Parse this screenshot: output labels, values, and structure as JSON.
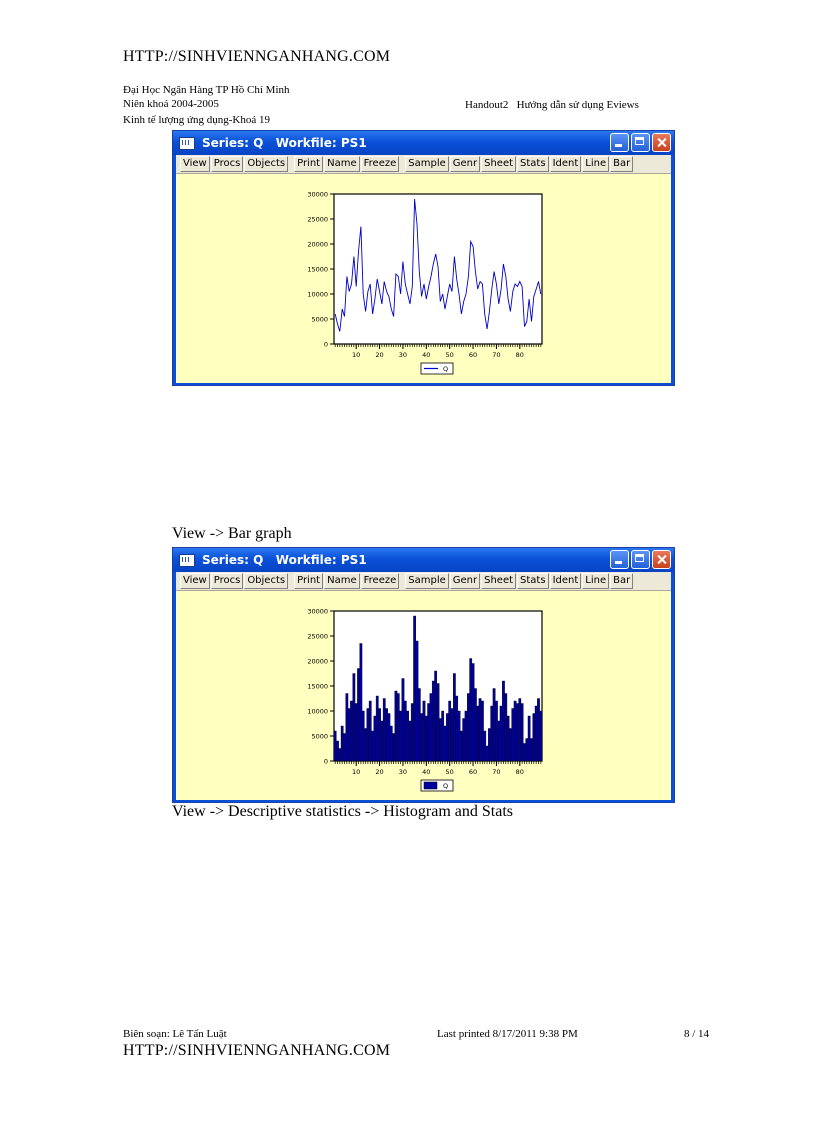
{
  "header": {
    "url": "HTTP://SINHVIENNGANHANG.COM",
    "line1": "Đại Học Ngân Hàng TP Hồ Chí Minh",
    "line2": "Niên khoá 2004-2005",
    "line3": "Kinh tế lượng ứng dụng-Khoá 19",
    "handout": "Handout2   Hướng dẫn sử dụng Eviews"
  },
  "window": {
    "title": "Series: Q   Workfile: PS1",
    "toolbar": [
      "View",
      "Procs",
      "Objects",
      "Print",
      "Name",
      "Freeze",
      "Sample",
      "Genr",
      "Sheet",
      "Stats",
      "Ident",
      "Line",
      "Bar"
    ]
  },
  "captions": {
    "bar": "View -> Bar graph",
    "hist": "View -> Descriptive statistics -> Histogram and Stats"
  },
  "footer": {
    "author": "Biên soạn: Lê Tấn Luật",
    "printed": "Last printed 8/17/2011 9:38 PM",
    "page": "8 / 14",
    "url": "HTTP://SINHVIENNGANHANG.COM"
  },
  "colors": {
    "line_series": "#0000cc",
    "bar_fill": "#0000a0",
    "chart_bg": "#ffffc0"
  },
  "chart_data": [
    {
      "type": "line",
      "series": [
        {
          "name": "Q",
          "values": [
            6000,
            4000,
            2500,
            7000,
            5500,
            13500,
            10500,
            12000,
            17500,
            11500,
            18500,
            23500,
            10000,
            6500,
            10500,
            12000,
            6000,
            9000,
            13000,
            10500,
            8000,
            12500,
            10500,
            9500,
            7000,
            5500,
            14000,
            13500,
            10000,
            16500,
            12000,
            10000,
            8000,
            11500,
            29000,
            24000,
            14500,
            9500,
            12000,
            9000,
            11500,
            13500,
            16000,
            18000,
            15500,
            8500,
            10000,
            7000,
            9500,
            12000,
            10500,
            17500,
            13000,
            10000,
            6000,
            8500,
            10000,
            13500,
            20500,
            19500,
            14500,
            11000,
            12500,
            12000,
            6000,
            3000,
            6500,
            11000,
            14500,
            12000,
            8000,
            11000,
            16000,
            13500,
            9000,
            6500,
            10500,
            12000,
            11500,
            12500,
            11500,
            3500,
            4500,
            9000,
            4500,
            9500,
            11000,
            12500,
            10000
          ]
        }
      ],
      "xlim": [
        1,
        89
      ],
      "xticks": [
        10,
        20,
        30,
        40,
        50,
        60,
        70,
        80
      ],
      "ylim": [
        0,
        30000
      ],
      "yticks": [
        0,
        5000,
        10000,
        15000,
        20000,
        25000,
        30000
      ],
      "legend": "bottom"
    },
    {
      "type": "bar",
      "series": [
        {
          "name": "Q",
          "values": [
            6000,
            4000,
            2500,
            7000,
            5500,
            13500,
            10500,
            12000,
            17500,
            11500,
            18500,
            23500,
            10000,
            6500,
            10500,
            12000,
            6000,
            9000,
            13000,
            10500,
            8000,
            12500,
            10500,
            9500,
            7000,
            5500,
            14000,
            13500,
            10000,
            16500,
            12000,
            10000,
            8000,
            11500,
            29000,
            24000,
            14500,
            9500,
            12000,
            9000,
            11500,
            13500,
            16000,
            18000,
            15500,
            8500,
            10000,
            7000,
            9500,
            12000,
            10500,
            17500,
            13000,
            10000,
            6000,
            8500,
            10000,
            13500,
            20500,
            19500,
            14500,
            11000,
            12500,
            12000,
            6000,
            3000,
            6500,
            11000,
            14500,
            12000,
            8000,
            11000,
            16000,
            13500,
            9000,
            6500,
            10500,
            12000,
            11500,
            12500,
            11500,
            3500,
            4500,
            9000,
            4500,
            9500,
            11000,
            12500,
            10000
          ]
        }
      ],
      "xlim": [
        1,
        89
      ],
      "xticks": [
        10,
        20,
        30,
        40,
        50,
        60,
        70,
        80
      ],
      "ylim": [
        0,
        30000
      ],
      "yticks": [
        0,
        5000,
        10000,
        15000,
        20000,
        25000,
        30000
      ],
      "legend": "bottom"
    }
  ]
}
